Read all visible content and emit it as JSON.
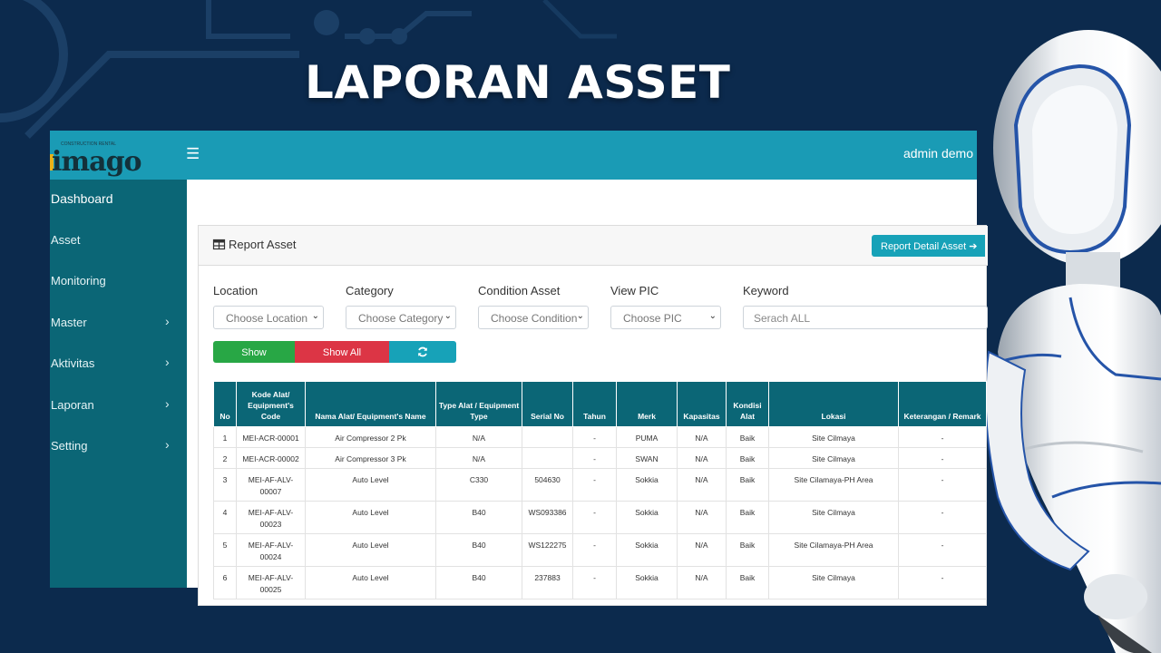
{
  "headline": "LAPORAN ASSET",
  "colors": {
    "background": "#0c2a4d",
    "topbar": "#1a9bb5",
    "sidebar": "#0b6676",
    "show": "#28a745",
    "show_all": "#dc3545",
    "info": "#17a2b8"
  },
  "app": {
    "logo_text": "imago",
    "logo_tagline": "CONSTRUCTION RENTAL",
    "menu_icon": "hamburger-icon",
    "user": "admin demo"
  },
  "sidebar": {
    "items": [
      {
        "label": "Dashboard",
        "submenu": false
      },
      {
        "label": "Asset",
        "submenu": false
      },
      {
        "label": "Monitoring",
        "submenu": false
      },
      {
        "label": "Master",
        "submenu": true
      },
      {
        "label": "Aktivitas",
        "submenu": true
      },
      {
        "label": "Laporan",
        "submenu": true
      },
      {
        "label": "Setting",
        "submenu": true
      }
    ]
  },
  "card": {
    "title": "Report Asset",
    "title_icon": "table-icon",
    "detail_button": "Report Detail Asset"
  },
  "filters": {
    "location": {
      "label": "Location",
      "value": "Choose Location"
    },
    "category": {
      "label": "Category",
      "value": "Choose Category"
    },
    "condition": {
      "label": "Condition Asset",
      "value": "Choose Condition"
    },
    "pic": {
      "label": "View PIC",
      "value": "Choose PIC"
    },
    "keyword": {
      "label": "Keyword",
      "placeholder": "Serach ALL"
    }
  },
  "buttons": {
    "show": "Show",
    "show_all": "Show All",
    "refresh_icon": "refresh-icon"
  },
  "table": {
    "headers": [
      "No",
      "Kode Alat/ Equipment's Code",
      "Nama Alat/ Equipment's Name",
      "Type Alat / Equipment Type",
      "Serial No",
      "Tahun",
      "Merk",
      "Kapasitas",
      "Kondisi Alat",
      "Lokasi",
      "Keterangan / Remark"
    ],
    "rows": [
      [
        "1",
        "MEI-ACR-00001",
        "Air Compressor 2 Pk",
        "N/A",
        "",
        "-",
        "PUMA",
        "N/A",
        "Baik",
        "Site Cilmaya",
        "-"
      ],
      [
        "2",
        "MEI-ACR-00002",
        "Air Compressor 3 Pk",
        "N/A",
        "",
        "-",
        "SWAN",
        "N/A",
        "Baik",
        "Site Cilmaya",
        "-"
      ],
      [
        "3",
        "MEI-AF-ALV-00007",
        "Auto Level",
        "C330",
        "504630",
        "-",
        "Sokkia",
        "N/A",
        "Baik",
        "Site Cilamaya-PH Area",
        "-"
      ],
      [
        "4",
        "MEI-AF-ALV-00023",
        "Auto Level",
        "B40",
        "WS093386",
        "-",
        "Sokkia",
        "N/A",
        "Baik",
        "Site Cilmaya",
        "-"
      ],
      [
        "5",
        "MEI-AF-ALV-00024",
        "Auto Level",
        "B40",
        "WS122275",
        "-",
        "Sokkia",
        "N/A",
        "Baik",
        "Site Cilamaya-PH Area",
        "-"
      ],
      [
        "6",
        "MEI-AF-ALV-00025",
        "Auto Level",
        "B40",
        "237883",
        "-",
        "Sokkia",
        "N/A",
        "Baik",
        "Site Cilmaya",
        "-"
      ]
    ]
  }
}
